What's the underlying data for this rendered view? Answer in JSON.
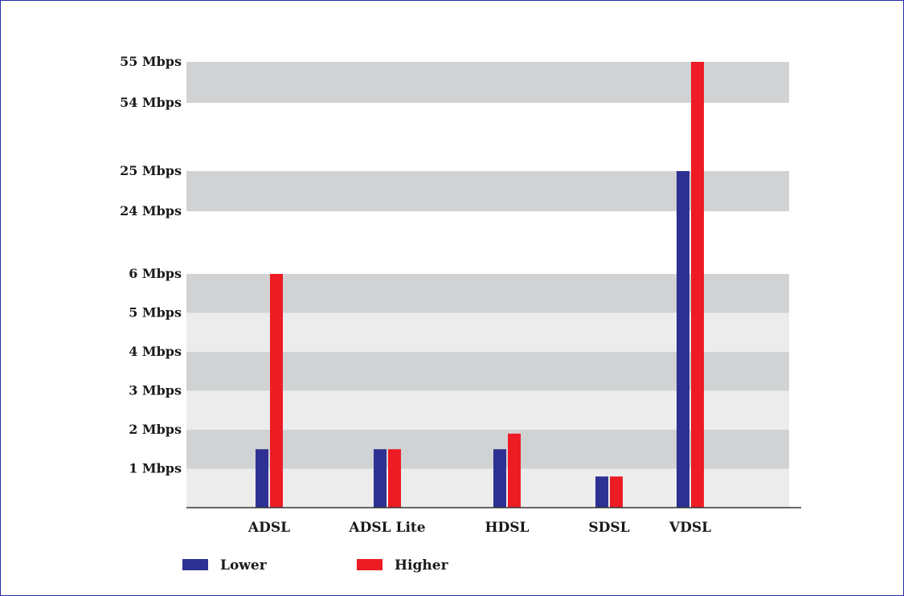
{
  "chart_data": {
    "type": "bar",
    "title": "",
    "xlabel": "",
    "ylabel": "",
    "y_scale": "piecewise (broken axis)",
    "grid": "alternating horizontal bands",
    "legend_position": "bottom-left",
    "y_ticks": [
      "1 Mbps",
      "2 Mbps",
      "3 Mbps",
      "4 Mbps",
      "5 Mbps",
      "6 Mbps",
      "24 Mbps",
      "25 Mbps",
      "54 Mbps",
      "55 Mbps"
    ],
    "y_tick_values": [
      1,
      2,
      3,
      4,
      5,
      6,
      24,
      25,
      54,
      55
    ],
    "categories": [
      "ADSL",
      "ADSL Lite",
      "HDSL",
      "SDSL",
      "VDSL"
    ],
    "series": [
      {
        "name": "Lower",
        "color": "#2e3192",
        "values": [
          1.5,
          1.5,
          1.5,
          0.8,
          25
        ]
      },
      {
        "name": "Higher",
        "color": "#ed1c24",
        "values": [
          6,
          1.5,
          1.9,
          0.8,
          55
        ]
      }
    ],
    "band_colors": {
      "dark": "#d1d2d4",
      "light": "#ececed"
    },
    "axis_color": "#333333"
  }
}
